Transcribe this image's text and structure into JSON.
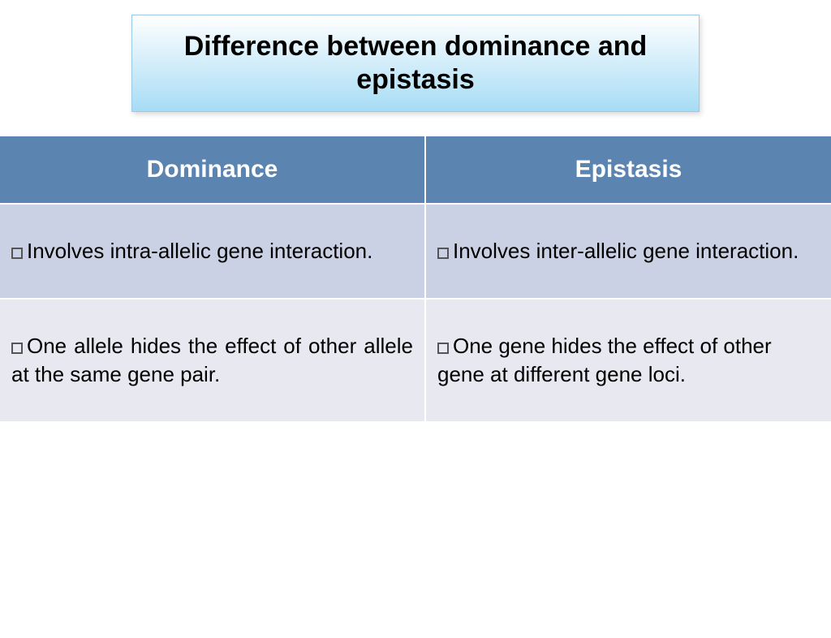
{
  "title": "Difference between dominance and epistasis",
  "title_box": {
    "gradient_top": "#ffffff",
    "gradient_bottom": "#a7dcf5",
    "border_color": "#9cc9e6",
    "font_size": 34,
    "font_weight": "900",
    "text_color": "#000000"
  },
  "table": {
    "header_bg": "#5b84b1",
    "header_text_color": "#ffffff",
    "header_font_size": 30,
    "row_bg_1": "#cbd1e4",
    "row_bg_2": "#e8e9f0",
    "cell_font_size": 26,
    "columns": [
      "Dominance",
      "Epistasis"
    ],
    "rows": [
      {
        "dominance": "Involves intra-allelic gene interaction.",
        "epistasis": "Involves inter-allelic gene interaction.",
        "justify_dominance": false,
        "justify_epistasis": false
      },
      {
        "dominance": "One allele hides the effect of other allele at the same gene pair.",
        "epistasis": "One gene hides the effect of other gene at different gene loci.",
        "justify_dominance": true,
        "justify_epistasis": false
      }
    ]
  },
  "bullet": {
    "border_color": "#555555",
    "size": 14
  }
}
